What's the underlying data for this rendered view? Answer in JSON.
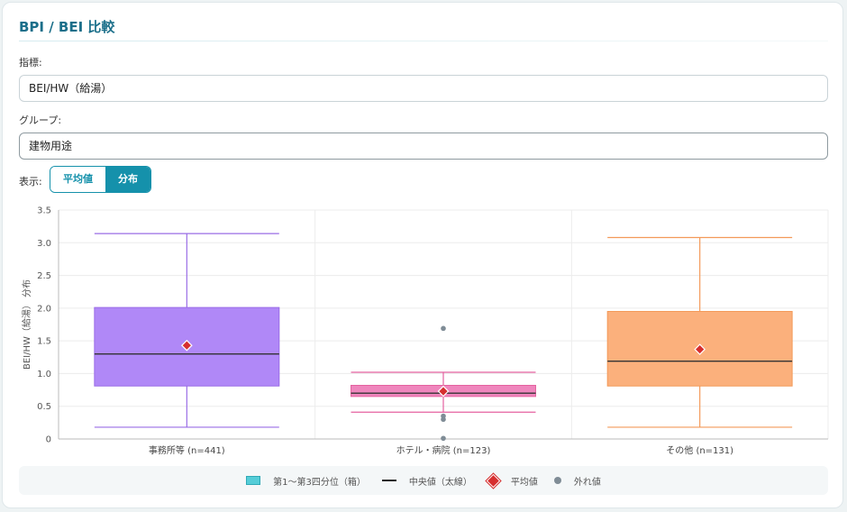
{
  "page": {
    "title": "BPI / BEI 比較"
  },
  "controls": {
    "metric_label": "指標:",
    "metric_value": "BEI/HW（給湯）",
    "group_label": "グループ:",
    "group_value": "建物用途",
    "view_label": "表示:",
    "view_options": [
      "平均値",
      "分布"
    ],
    "view_selected": "分布"
  },
  "chart_data": {
    "type": "boxplot",
    "ylabel": "BEI/HW（給湯） 分布",
    "ylim": [
      0,
      3.5
    ],
    "yticks": [
      0,
      0.5,
      1.0,
      1.5,
      2.0,
      2.5,
      3.0,
      3.5
    ],
    "ytick_labels": [
      "0",
      "0.5",
      "1.0",
      "1.5",
      "2.0",
      "2.5",
      "3.0",
      "3.5"
    ],
    "grid": true,
    "categories": [
      "事務所等 (n=441)",
      "ホテル・病院 (n=123)",
      "その他 (n=131)"
    ],
    "series": [
      {
        "category": "事務所等 (n=441)",
        "whisker_low": 0.18,
        "q1": 0.81,
        "median": 1.3,
        "q3": 2.01,
        "whisker_high": 3.14,
        "mean": 1.43,
        "outliers": [],
        "fill": "#b088f7",
        "stroke": "#9a6ce6"
      },
      {
        "category": "ホテル・病院 (n=123)",
        "whisker_low": 0.41,
        "q1": 0.65,
        "median": 0.7,
        "q3": 0.82,
        "whisker_high": 1.02,
        "mean": 0.73,
        "outliers": [
          1.69,
          0.35,
          0.3,
          0.01
        ],
        "fill": "#ef86bd",
        "stroke": "#e4619f"
      },
      {
        "category": "その他 (n=131)",
        "whisker_low": 0.18,
        "q1": 0.81,
        "median": 1.19,
        "q3": 1.95,
        "whisker_high": 3.08,
        "mean": 1.37,
        "outliers": [],
        "fill": "#fbb07c",
        "stroke": "#f39a59"
      }
    ],
    "mean_color": "#d62f2f",
    "outlier_color": "#7f8c96",
    "median_color": "#333333"
  },
  "legend": {
    "box": "第1〜第3四分位（箱）",
    "median": "中央値（太線）",
    "mean": "平均値",
    "outlier": "外れ値"
  }
}
